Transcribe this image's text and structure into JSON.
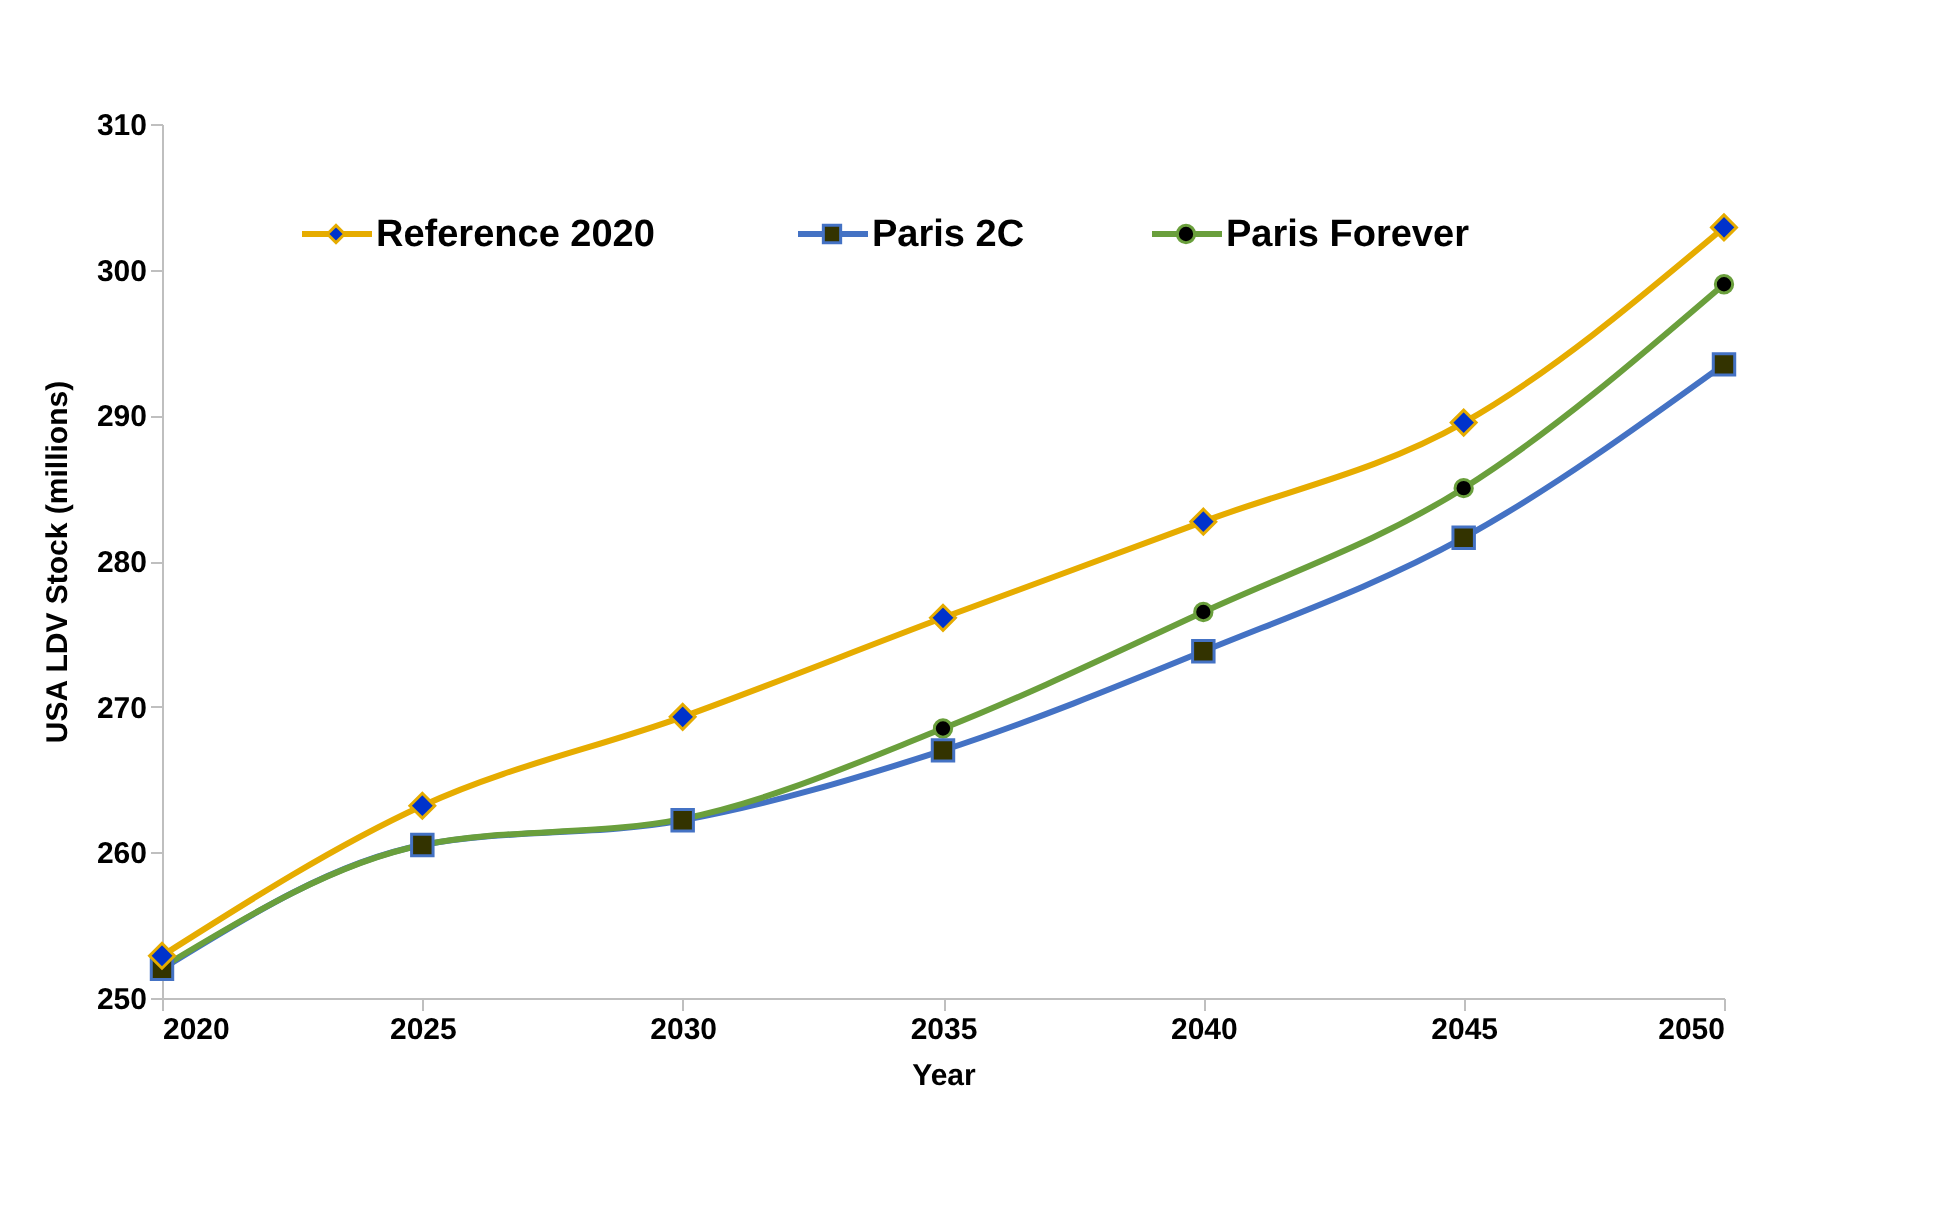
{
  "chart_data": {
    "type": "line",
    "xlabel": "Year",
    "ylabel": "USA  LDV Stock  (millions)",
    "x": [
      2020,
      2025,
      2030,
      2035,
      2040,
      2045,
      2050
    ],
    "series": [
      {
        "name": "Reference 2020",
        "color": "#e6ac00",
        "marker": "diamond",
        "values": [
          252.9,
          263.2,
          269.3,
          276.1,
          282.7,
          289.5,
          302.9
        ]
      },
      {
        "name": "Paris 2C",
        "color": "#4472c4",
        "marker": "square",
        "values": [
          252.0,
          260.5,
          262.2,
          267.0,
          273.8,
          281.6,
          293.5
        ]
      },
      {
        "name": "Paris Forever",
        "color": "#6a9f3c",
        "marker": "circle",
        "values": [
          252.1,
          260.5,
          262.3,
          268.5,
          276.5,
          285.0,
          299.0
        ]
      }
    ],
    "xlim": [
      2020,
      2050
    ],
    "xticks": [
      2020,
      2025,
      2030,
      2035,
      2040,
      2045,
      2050
    ],
    "ylim": [
      250,
      310
    ],
    "yticks": [
      250,
      260,
      270,
      280,
      290,
      300,
      310
    ],
    "grid": false,
    "legend": "top",
    "line_style": "solid"
  }
}
